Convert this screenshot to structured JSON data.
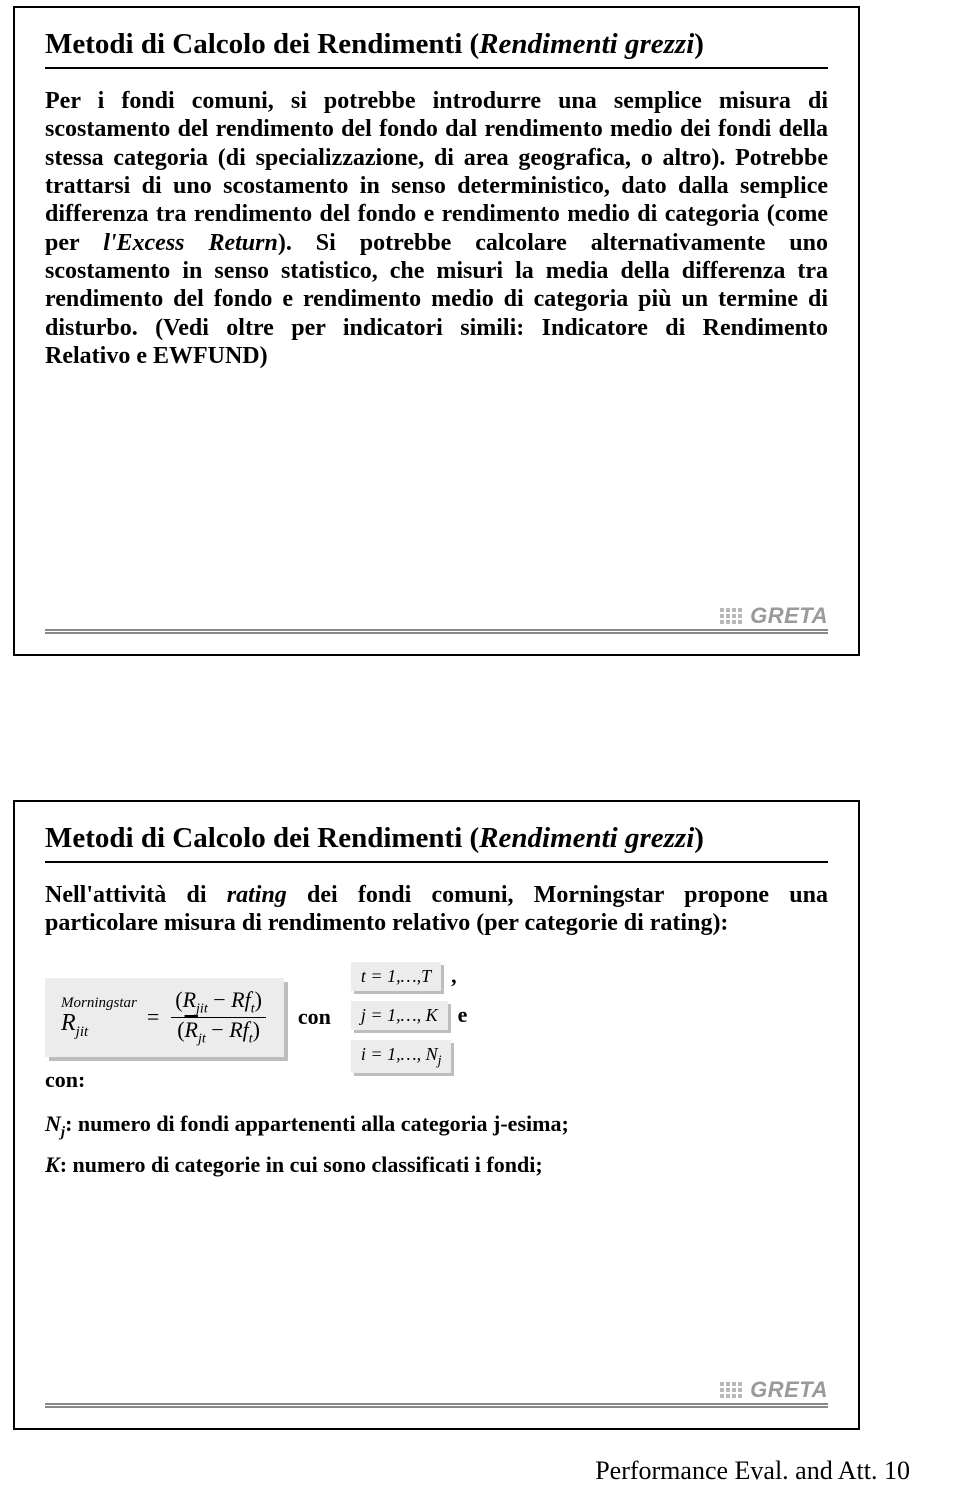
{
  "slide1": {
    "title_main": "Metodi di Calcolo dei Rendimenti (",
    "title_ital": "Rendimenti grezzi",
    "title_end": ")",
    "para": "Per i fondi comuni, si potrebbe introdurre una semplice misura di scostamento del rendimento del fondo dal rendimento medio dei fondi della stessa categoria (di specializzazione, di area geografica, o altro). Potrebbe trattarsi di uno scostamento in senso deterministico, dato dalla semplice differenza  tra rendimento del fondo e rendimento medio di categoria (come per ",
    "para_ital1": "l'Excess Return",
    "para2": "). Si potrebbe calcolare alternativamente uno scostamento in senso statistico, che misuri la media della differenza tra rendimento del fondo e rendimento medio di categoria più un termine di disturbo. (Vedi oltre per indicatori simili: Indicatore di Rendimento Relativo e EWFUND)"
  },
  "slide2": {
    "title_main": "Metodi di Calcolo dei Rendimenti (",
    "title_ital": "Rendimenti grezzi",
    "title_end": ")",
    "intro_a": "Nell'attività di ",
    "intro_ital": "rating",
    "intro_b": " dei fondi comuni, Morningstar propone una particolare misura di rendimento relativo (per categorie di rating):",
    "formula": {
      "lhs_sup": "Morningstar",
      "lhs_base": "R",
      "lhs_sub": "jit",
      "eq": "=",
      "num_open": "(",
      "num_a": "R",
      "num_a_sub": "jit",
      "num_minus": " − ",
      "num_b": "Rf",
      "num_b_sub": "t",
      "num_close": ")",
      "den_open": "(",
      "den_a": "R",
      "den_a_sub": "jt",
      "den_minus": " − ",
      "den_b": "Rf",
      "den_b_sub": "t",
      "den_close": ")"
    },
    "con": "con",
    "rng_t": "t = 1,…,T",
    "comma": ",",
    "rng_j": "j = 1,…, K",
    "e": "e",
    "rng_i_a": "i = 1,…, N",
    "rng_i_sub": "j",
    "con2": "con:",
    "def_nj_a": "N",
    "def_nj_sub": "j",
    "def_nj_b": ": numero di fondi appartenenti alla categoria j-esima;",
    "def_k": "K",
    "def_k_b": ": numero di categorie in cui sono classificati i fondi;"
  },
  "greta": "GRETA",
  "footer": "Performance Eval. and Att. 10"
}
